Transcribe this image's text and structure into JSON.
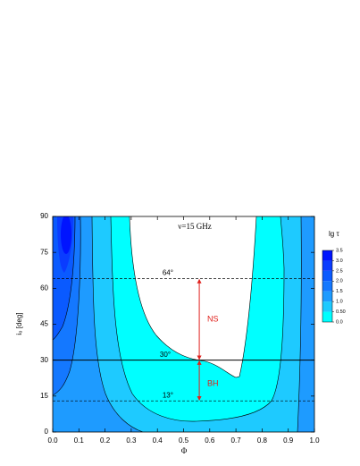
{
  "chart_data": {
    "type": "contour",
    "x_label": "Φ",
    "y_label": "i₀ [deg]",
    "xlim": [
      0,
      1
    ],
    "xticks": [
      {
        "value": 0,
        "label": "0.0"
      },
      {
        "value": 0.1,
        "label": "0.1"
      },
      {
        "value": 0.2,
        "label": "0.2"
      },
      {
        "value": 0.3,
        "label": "0.3"
      },
      {
        "value": 0.4,
        "label": "0.4"
      },
      {
        "value": 0.5,
        "label": "0.5"
      },
      {
        "value": 0.6,
        "label": "0.6"
      },
      {
        "value": 0.7,
        "label": "0.7"
      },
      {
        "value": 0.8,
        "label": "0.8"
      },
      {
        "value": 0.9,
        "label": "0.9"
      },
      {
        "value": 1,
        "label": "1.0"
      }
    ],
    "ylim": [
      0,
      90
    ],
    "yticks": [
      0,
      15,
      30,
      45,
      60,
      75,
      90
    ],
    "colorbar": {
      "label": "lg τ",
      "clim": [
        0,
        3.5
      ],
      "ticks": [
        {
          "value": 0,
          "label": "0.0"
        },
        {
          "value": 0.5,
          "label": "0.50"
        },
        {
          "value": 1,
          "label": "1.0"
        },
        1.5,
        {
          "value": 2,
          "label": "2.0"
        },
        2.5,
        {
          "value": 3,
          "label": "3.0"
        },
        3.5
      ],
      "colors": [
        "#00ffff",
        "#1ecaff",
        "#1e9bff",
        "#1478ff",
        "#0a5aff",
        "#0a3cff",
        "#0014ff"
      ]
    },
    "reference_lines": [
      {
        "value": 64,
        "style": "dashed",
        "label": "64°"
      },
      {
        "value": 30,
        "style": "solid",
        "label": "30°"
      },
      {
        "value": 13,
        "style": "dashed",
        "label": "13°"
      }
    ],
    "annotations": {
      "frequency": "ν=15 GHz",
      "upper_range": "NS",
      "lower_range": "BH"
    },
    "arrow_x": 0.56,
    "arrow_color": "#e0201c"
  }
}
